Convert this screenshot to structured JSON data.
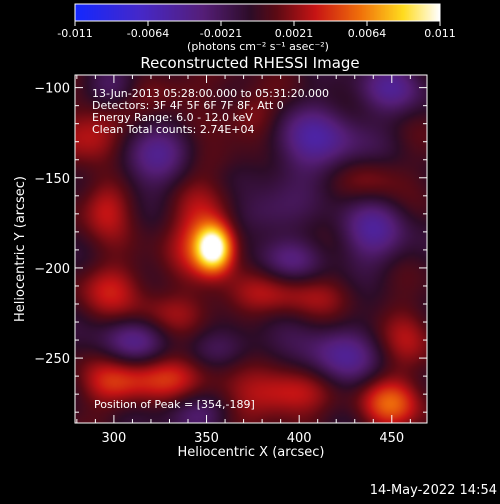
{
  "colorbar": {
    "ticks": [
      "-0.011",
      "-0.0064",
      "-0.0021",
      "0.0021",
      "0.0064",
      "0.011"
    ],
    "units_label": "(photons cm⁻² s⁻¹ asec⁻²)",
    "vmin": -0.011,
    "vmax": 0.011,
    "colormap": "blue-purple-red-orange-yellow-white"
  },
  "chart_data": {
    "type": "heatmap",
    "title": "Reconstructed RHESSI Image",
    "xlabel": "Heliocentric X (arcsec)",
    "ylabel": "Heliocentric Y (arcsec)",
    "xlim": [
      279,
      469
    ],
    "ylim": [
      -286,
      -93
    ],
    "xticks": [
      300,
      350,
      400,
      450
    ],
    "yticks": [
      -100,
      -150,
      -200,
      -250
    ],
    "annotations": [
      "13-Jun-2013 05:28:00.000 to 05:31:20.000",
      "Detectors: 3F 4F 5F 6F 7F 8F, Att 0",
      "Energy Range: 6.0 - 12.0 keV",
      "Clean    Total counts: 2.74E+04"
    ],
    "peak_label": "Position of Peak = [354,-189]",
    "peak": [
      354,
      -189
    ],
    "blobs": [
      {
        "x": 354,
        "y": -189,
        "sx": 7,
        "sy": 9,
        "v": 0.011
      },
      {
        "x": 348,
        "y": -180,
        "sx": 14,
        "sy": 16,
        "v": 0.004
      },
      {
        "x": 290,
        "y": -125,
        "sx": 12,
        "sy": 12,
        "v": 0.004
      },
      {
        "x": 295,
        "y": -165,
        "sx": 10,
        "sy": 12,
        "v": 0.0035
      },
      {
        "x": 300,
        "y": -210,
        "sx": 14,
        "sy": 10,
        "v": 0.003
      },
      {
        "x": 330,
        "y": -260,
        "sx": 20,
        "sy": 9,
        "v": 0.004
      },
      {
        "x": 300,
        "y": -265,
        "sx": 12,
        "sy": 10,
        "v": 0.003
      },
      {
        "x": 390,
        "y": -270,
        "sx": 18,
        "sy": 10,
        "v": 0.0045
      },
      {
        "x": 450,
        "y": -275,
        "sx": 12,
        "sy": 10,
        "v": 0.005
      },
      {
        "x": 375,
        "y": -115,
        "sx": 10,
        "sy": 10,
        "v": 0.003
      },
      {
        "x": 395,
        "y": -215,
        "sx": 26,
        "sy": 8,
        "v": 0.0025
      },
      {
        "x": 440,
        "y": -150,
        "sx": 12,
        "sy": 10,
        "v": 0.0025
      },
      {
        "x": 460,
        "y": -240,
        "sx": 10,
        "sy": 14,
        "v": 0.0025
      },
      {
        "x": 330,
        "y": -225,
        "sx": 22,
        "sy": 8,
        "v": 0.002
      },
      {
        "x": 355,
        "y": -140,
        "sx": 15,
        "sy": 8,
        "v": 0.0015
      },
      {
        "x": 330,
        "y": -100,
        "sx": 15,
        "sy": 8,
        "v": 0.002
      },
      {
        "x": 320,
        "y": -140,
        "sx": 16,
        "sy": 12,
        "v": -0.004
      },
      {
        "x": 410,
        "y": -130,
        "sx": 20,
        "sy": 14,
        "v": -0.0045
      },
      {
        "x": 440,
        "y": -180,
        "sx": 14,
        "sy": 14,
        "v": -0.004
      },
      {
        "x": 420,
        "y": -250,
        "sx": 16,
        "sy": 12,
        "v": -0.004
      },
      {
        "x": 310,
        "y": -240,
        "sx": 14,
        "sy": 10,
        "v": -0.0035
      },
      {
        "x": 380,
        "y": -170,
        "sx": 14,
        "sy": 10,
        "v": -0.003
      },
      {
        "x": 345,
        "y": -280,
        "sx": 14,
        "sy": 8,
        "v": -0.003
      },
      {
        "x": 450,
        "y": -100,
        "sx": 14,
        "sy": 10,
        "v": -0.0035
      },
      {
        "x": 300,
        "y": -100,
        "sx": 10,
        "sy": 8,
        "v": -0.003
      },
      {
        "x": 395,
        "y": -195,
        "sx": 14,
        "sy": 8,
        "v": -0.0025
      },
      {
        "x": 360,
        "y": -245,
        "sx": 14,
        "sy": 8,
        "v": -0.0025
      }
    ]
  },
  "footer": {
    "date": "14-May-2022 14:54"
  }
}
